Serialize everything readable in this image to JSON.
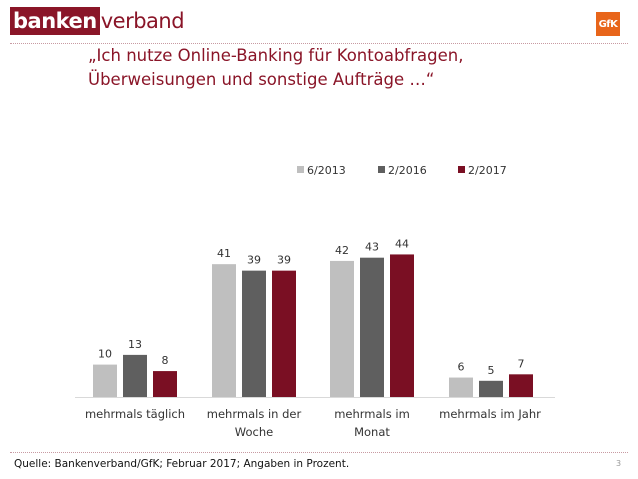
{
  "header": {
    "logo_box_text": "banken",
    "logo_rest_text": "verband",
    "gfk_logo_text": "GfK"
  },
  "title_line1": "„Ich nutze Online-Banking für Kontoabfragen,",
  "title_line2": "Überweisungen und sonstige Aufträge …“",
  "footer": {
    "source": "Quelle: Bankenverband/GfK; Februar 2017; Angaben in Prozent.",
    "page_number": "3"
  },
  "colors": {
    "brand": "#8a1528",
    "series": [
      "#bfbfbf",
      "#5f5f5f",
      "#7a0f23"
    ]
  },
  "chart_data": {
    "type": "bar",
    "categories": [
      [
        "mehrmals täglich"
      ],
      [
        "mehrmals in der",
        "Woche"
      ],
      [
        "mehrmals im",
        "Monat"
      ],
      [
        "mehrmals im Jahr"
      ]
    ],
    "series": [
      {
        "name": "6/2013",
        "values": [
          10,
          41,
          42,
          6
        ]
      },
      {
        "name": "2/2016",
        "values": [
          13,
          39,
          43,
          5
        ]
      },
      {
        "name": "2/2017",
        "values": [
          8,
          39,
          44,
          7
        ]
      }
    ],
    "ylim": [
      0,
      50
    ],
    "grid": false,
    "legend": "top-right",
    "data_labels": true
  }
}
